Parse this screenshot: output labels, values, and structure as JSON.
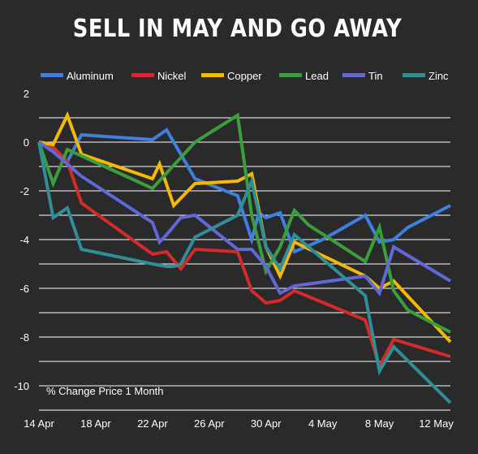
{
  "chart_data": {
    "type": "line",
    "title": "SELL IN MAY AND GO AWAY",
    "annotation": "% Change Price 1 Month",
    "xlabel": "",
    "ylabel": "",
    "x_ticks": [
      "14 Apr",
      "18 Apr",
      "22 Apr",
      "26 Apr",
      "30 Apr",
      "4 May",
      "8 May",
      "12 May"
    ],
    "y_ticks": [
      2,
      0,
      -2,
      -4,
      -6,
      -8,
      -10
    ],
    "ylim": [
      -11,
      2
    ],
    "grid": "horizontal",
    "legend_position": "top",
    "series": [
      {
        "name": "Aluminum",
        "color": "#3f7fe0",
        "points": [
          [
            14,
            0
          ],
          [
            15,
            -0.3
          ],
          [
            16,
            -0.8
          ],
          [
            17,
            0.3
          ],
          [
            22,
            0.1
          ],
          [
            23,
            0.5
          ],
          [
            25,
            -1.5
          ],
          [
            28,
            -2.2
          ],
          [
            29,
            -4
          ],
          [
            29.5,
            -2.9
          ],
          [
            30,
            -3.1
          ],
          [
            31,
            -2.9
          ],
          [
            32,
            -4.5
          ],
          [
            34,
            -4
          ],
          [
            37,
            -3
          ],
          [
            38,
            -4.1
          ],
          [
            39,
            -4
          ],
          [
            40,
            -3.5
          ],
          [
            43,
            -2.6
          ]
        ]
      },
      {
        "name": "Nickel",
        "color": "#d32a2a",
        "points": [
          [
            14,
            0
          ],
          [
            15,
            -0.2
          ],
          [
            16,
            -0.8
          ],
          [
            17,
            -2.5
          ],
          [
            22,
            -4.6
          ],
          [
            23,
            -4.5
          ],
          [
            24,
            -5.2
          ],
          [
            25,
            -4.4
          ],
          [
            28,
            -4.5
          ],
          [
            29,
            -6.1
          ],
          [
            30,
            -6.6
          ],
          [
            31,
            -6.5
          ],
          [
            32,
            -6.1
          ],
          [
            37,
            -7.3
          ],
          [
            38,
            -9.2
          ],
          [
            39,
            -8.1
          ],
          [
            43,
            -8.8
          ]
        ]
      },
      {
        "name": "Copper",
        "color": "#f6b800",
        "points": [
          [
            14,
            0
          ],
          [
            15,
            -0.1
          ],
          [
            16,
            1.1
          ],
          [
            17,
            -0.5
          ],
          [
            22,
            -1.5
          ],
          [
            22.5,
            -0.9
          ],
          [
            23.5,
            -2.6
          ],
          [
            25,
            -1.7
          ],
          [
            28,
            -1.6
          ],
          [
            29,
            -1.3
          ],
          [
            30,
            -4.3
          ],
          [
            31,
            -5.5
          ],
          [
            32,
            -4.1
          ],
          [
            37,
            -5.5
          ],
          [
            38,
            -6
          ],
          [
            39,
            -5.7
          ],
          [
            43,
            -8.2
          ]
        ]
      },
      {
        "name": "Lead",
        "color": "#3a9e3a",
        "points": [
          [
            14,
            0
          ],
          [
            15,
            -1.7
          ],
          [
            16,
            -0.3
          ],
          [
            22,
            -1.9
          ],
          [
            25,
            0
          ],
          [
            28,
            1.1
          ],
          [
            29,
            -3
          ],
          [
            30,
            -5.3
          ],
          [
            31,
            -4.3
          ],
          [
            32,
            -2.8
          ],
          [
            33,
            -3.4
          ],
          [
            37,
            -4.9
          ],
          [
            38,
            -3.5
          ],
          [
            39,
            -6.1
          ],
          [
            40,
            -6.9
          ],
          [
            43,
            -7.8
          ]
        ]
      },
      {
        "name": "Tin",
        "color": "#6168d6",
        "points": [
          [
            14,
            0
          ],
          [
            15,
            -0.4
          ],
          [
            16,
            -0.9
          ],
          [
            17,
            -1.4
          ],
          [
            22,
            -3.3
          ],
          [
            22.5,
            -4.1
          ],
          [
            23,
            -3.8
          ],
          [
            24,
            -3.1
          ],
          [
            25,
            -3
          ],
          [
            28,
            -4.4
          ],
          [
            29,
            -4.4
          ],
          [
            30,
            -5.1
          ],
          [
            31,
            -6.2
          ],
          [
            32,
            -5.9
          ],
          [
            37,
            -5.5
          ],
          [
            38,
            -6.2
          ],
          [
            39,
            -4.3
          ],
          [
            43,
            -5.7
          ]
        ]
      },
      {
        "name": "Zinc",
        "color": "#2f8e96",
        "points": [
          [
            14,
            0
          ],
          [
            15,
            -3.1
          ],
          [
            16,
            -2.7
          ],
          [
            17,
            -4.4
          ],
          [
            22,
            -5
          ],
          [
            23,
            -5.1
          ],
          [
            23.5,
            -5.1
          ],
          [
            24,
            -5
          ],
          [
            25,
            -3.9
          ],
          [
            28,
            -3
          ],
          [
            29,
            -1.6
          ],
          [
            30,
            -4.3
          ],
          [
            31,
            -5.2
          ],
          [
            32,
            -3.8
          ],
          [
            37,
            -6.3
          ],
          [
            38,
            -9.4
          ],
          [
            39,
            -8.4
          ],
          [
            43,
            -10.7
          ]
        ]
      }
    ]
  }
}
